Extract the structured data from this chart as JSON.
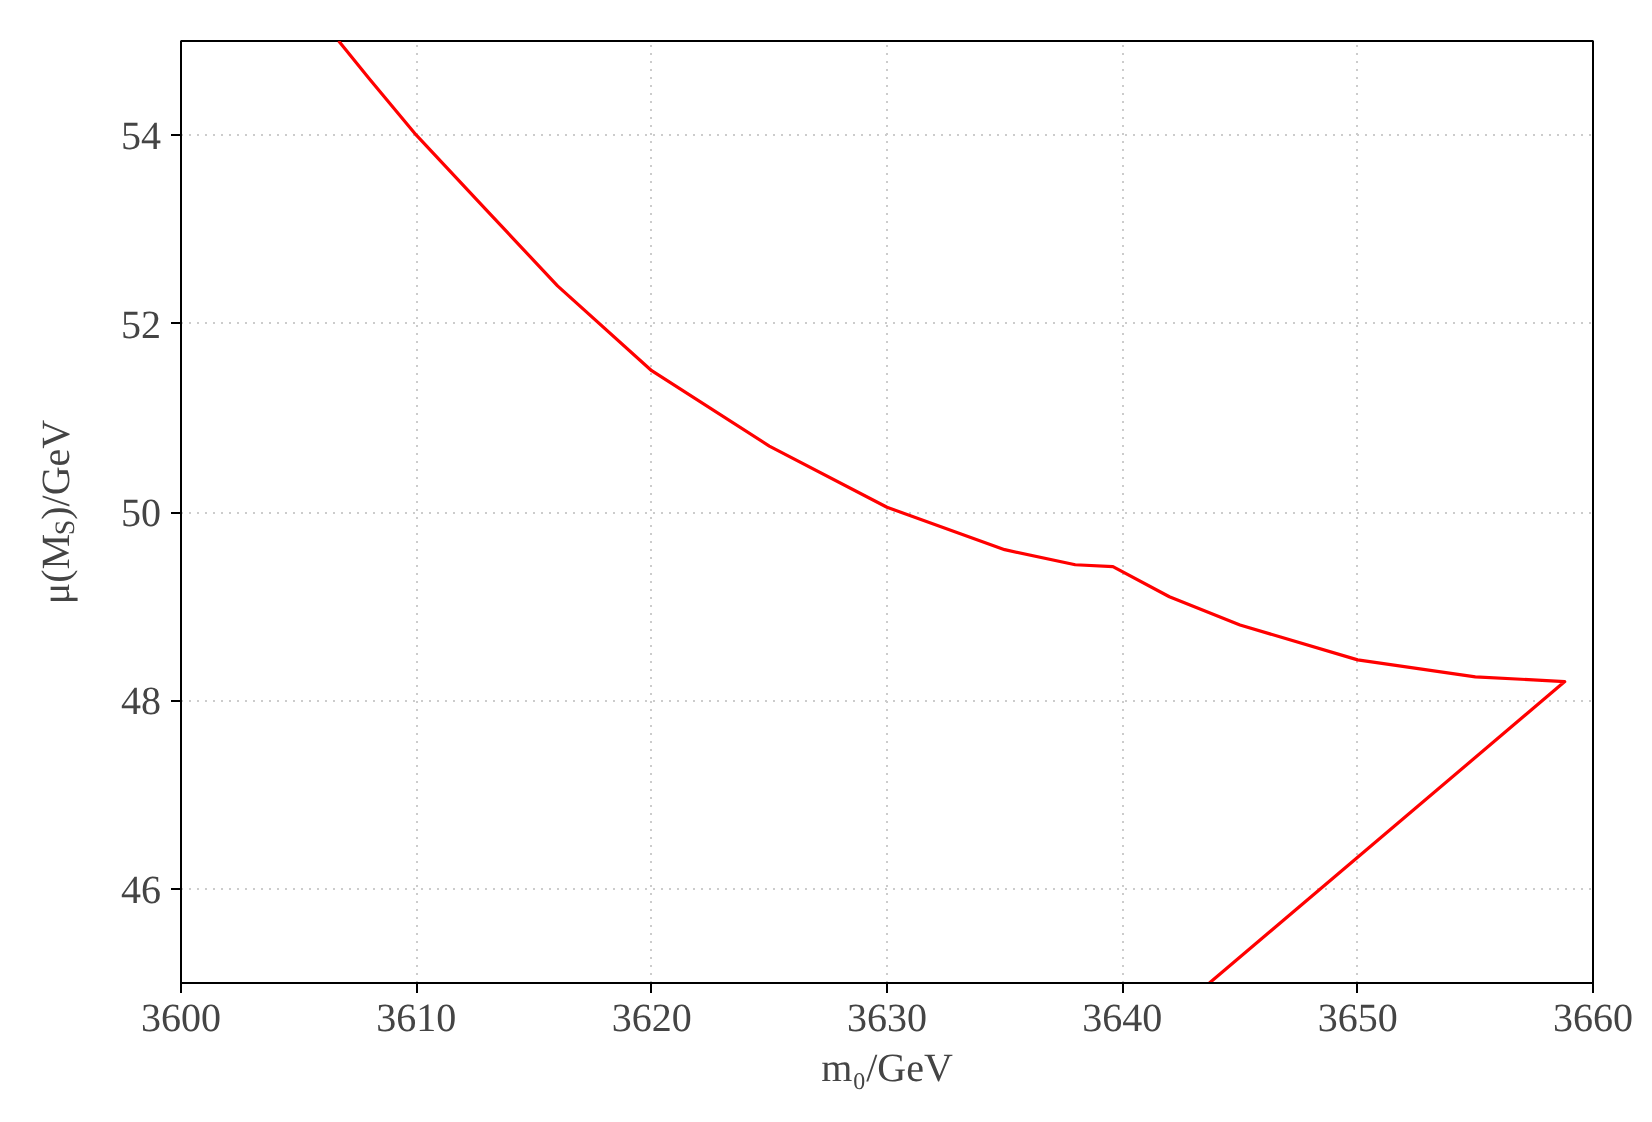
{
  "chart_data": {
    "type": "line",
    "xlabel": "m₀/GeV",
    "ylabel": "μ(M$_{S}$)/GeV",
    "xlim": [
      3600,
      3660
    ],
    "ylim": [
      45,
      55
    ],
    "xticks": [
      3600,
      3610,
      3620,
      3630,
      3640,
      3650,
      3660
    ],
    "yticks": [
      46,
      48,
      50,
      52,
      54
    ],
    "grid": true,
    "series": [
      {
        "color": "#ff0000",
        "x": [
          3606.7,
          3608,
          3610,
          3613,
          3616,
          3620,
          3625,
          3630,
          3635,
          3638,
          3639.6,
          3642,
          3645,
          3650,
          3655,
          3658.8,
          3643.7
        ],
        "values": [
          55,
          54.6,
          54.0,
          53.2,
          52.4,
          51.5,
          50.7,
          50.05,
          49.6,
          49.44,
          49.42,
          49.1,
          48.8,
          48.43,
          48.25,
          48.2,
          45.0
        ]
      }
    ]
  }
}
